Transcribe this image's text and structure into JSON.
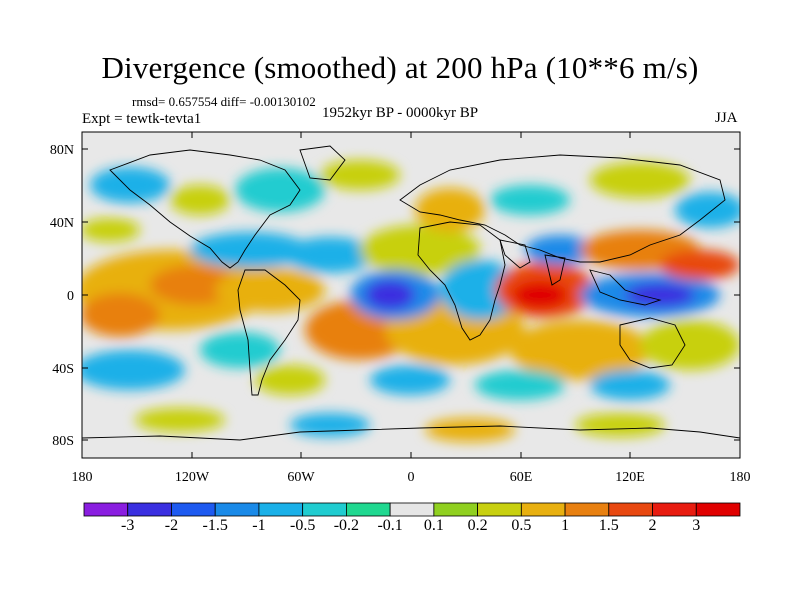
{
  "title": "Divergence (smoothed) at 200 hPa (10**6 m/s)",
  "stats": "rmsd= 0.657554 diff= -0.00130102",
  "experiment": "Expt = tewtk-tevta1",
  "period": "1952kyr BP - 0000kyr BP",
  "season": "JJA",
  "map": {
    "lat_ticks": [
      "80N",
      "40N",
      "0",
      "40S",
      "80S"
    ],
    "lon_ticks": [
      "180",
      "120W",
      "60W",
      "0",
      "60E",
      "120E",
      "180"
    ],
    "background_color": "#e8e8e8",
    "coastline_color": "#000000"
  },
  "colorbar": {
    "levels": [
      "-3",
      "-2",
      "-1.5",
      "-1",
      "-0.5",
      "-0.2",
      "-0.1",
      "0.1",
      "0.2",
      "0.5",
      "1",
      "1.5",
      "2",
      "3"
    ],
    "colors": [
      "#8a1ee0",
      "#3a2fe0",
      "#1e5af0",
      "#1a8ae8",
      "#1ab0e8",
      "#20ccd0",
      "#20d890",
      "#e6e6e6",
      "#90d020",
      "#c8d010",
      "#e8b010",
      "#e88010",
      "#e84810",
      "#e81c10",
      "#e00000"
    ]
  }
}
